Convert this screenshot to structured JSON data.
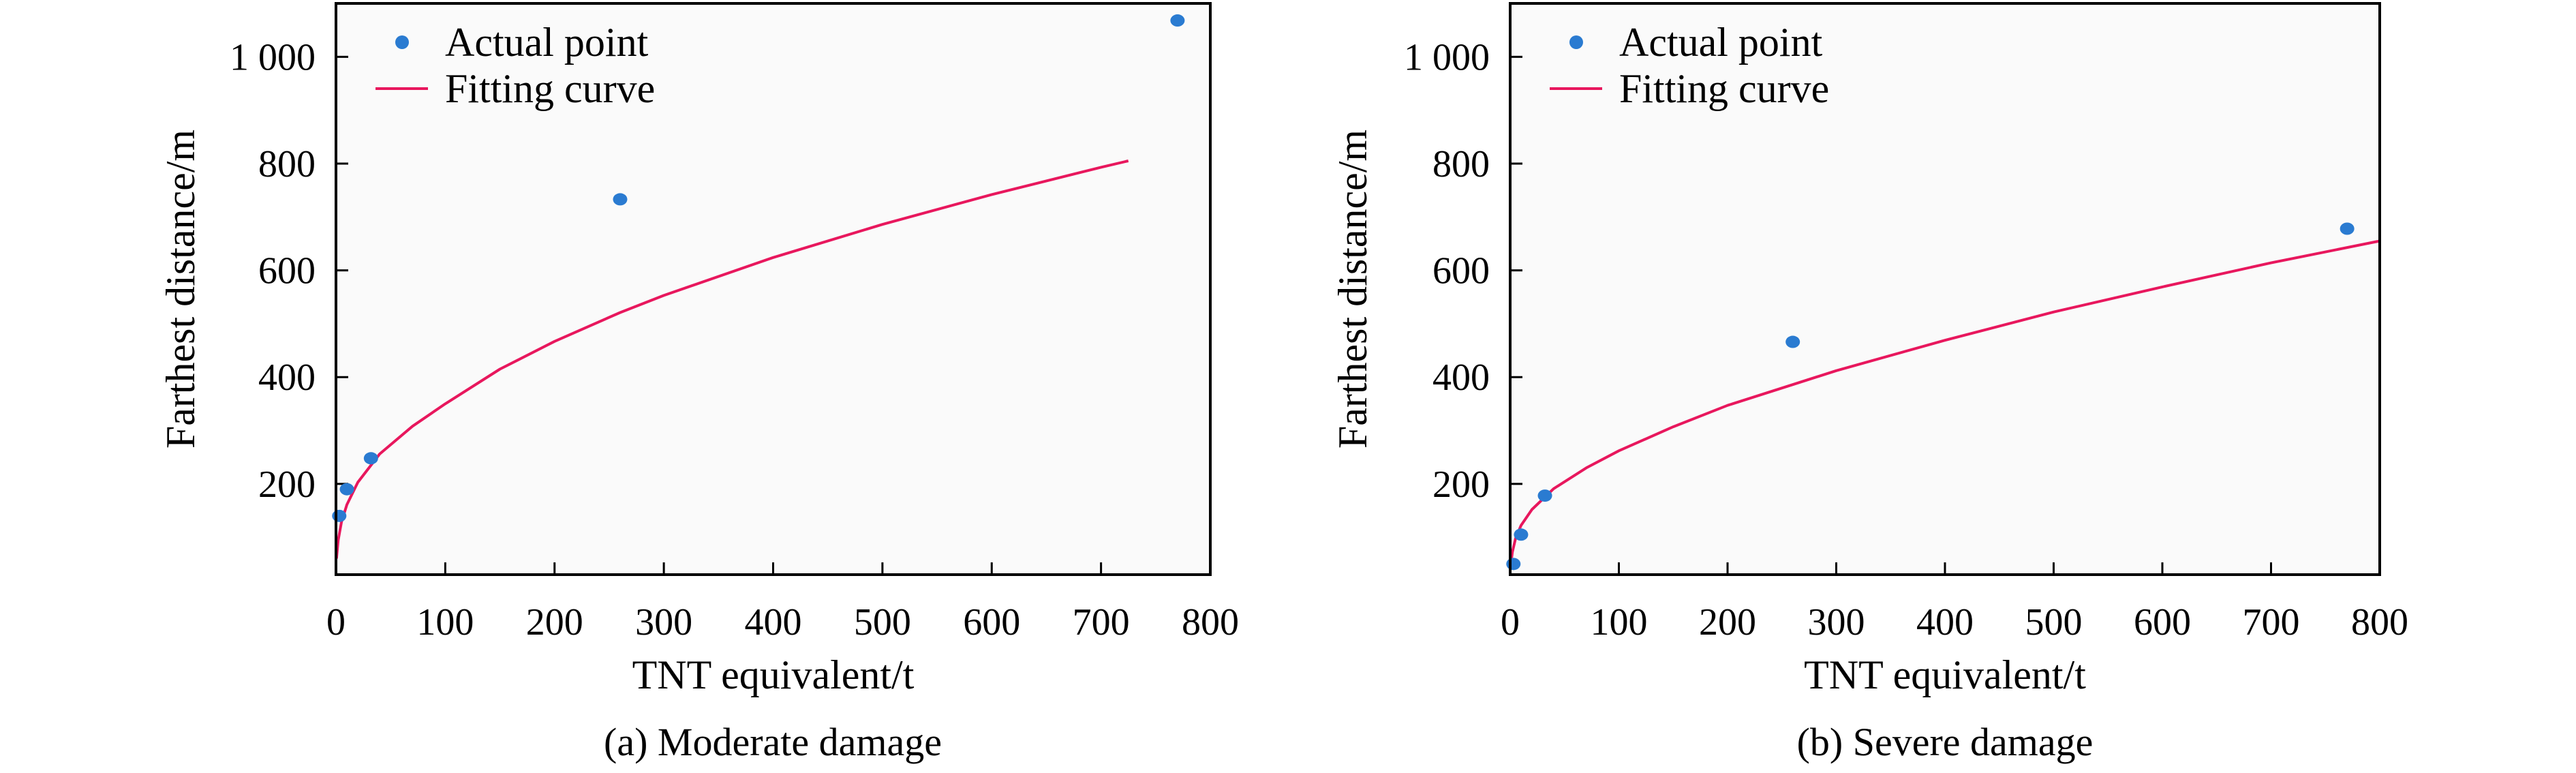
{
  "chart_data": [
    {
      "type": "scatter",
      "caption": "(a) Moderate damage",
      "xlabel": "TNT equivalent/t",
      "ylabel": "Farthest distance/m",
      "xlim": [
        0,
        800
      ],
      "ylim": [
        30,
        1100
      ],
      "x_ticks": [
        0,
        100,
        200,
        300,
        400,
        500,
        600,
        700,
        800
      ],
      "x_tick_labels": [
        "0",
        "100",
        "200",
        "300",
        "400",
        "500",
        "600",
        "700",
        "800"
      ],
      "y_ticks": [
        200,
        400,
        600,
        800,
        1000
      ],
      "y_tick_labels": [
        "200",
        "400",
        "600",
        "800",
        "1 000"
      ],
      "legend_position": "top-left",
      "background": "#fafafa",
      "series": [
        {
          "name": "Actual point",
          "kind": "scatter",
          "color": "#2a7bd1",
          "x": [
            3,
            10,
            32,
            260,
            770
          ],
          "y": [
            140,
            190,
            248,
            733,
            1068
          ]
        },
        {
          "name": "Fitting curve",
          "kind": "line",
          "color": "#e8175d",
          "x": [
            0.5,
            2,
            5,
            10,
            20,
            40,
            70,
            100,
            150,
            200,
            260,
            300,
            400,
            500,
            600,
            700,
            725
          ],
          "y": [
            60,
            94,
            128,
            161,
            203,
            256,
            308,
            350,
            415,
            467,
            521,
            553,
            624,
            686,
            742,
            793,
            805
          ]
        }
      ]
    },
    {
      "type": "scatter",
      "caption": "(b) Severe damage",
      "xlabel": "TNT equivalent/t",
      "ylabel": "Farthest distance/m",
      "xlim": [
        0,
        800
      ],
      "ylim": [
        30,
        1100
      ],
      "x_ticks": [
        0,
        100,
        200,
        300,
        400,
        500,
        600,
        700,
        800
      ],
      "x_tick_labels": [
        "0",
        "100",
        "200",
        "300",
        "400",
        "500",
        "600",
        "700",
        "800"
      ],
      "y_ticks": [
        200,
        400,
        600,
        800,
        1000
      ],
      "y_tick_labels": [
        "200",
        "400",
        "600",
        "800",
        "1 000"
      ],
      "legend_position": "top-left",
      "background": "#fafafa",
      "series": [
        {
          "name": "Actual point",
          "kind": "scatter",
          "color": "#2a7bd1",
          "x": [
            3,
            10,
            32,
            260,
            770
          ],
          "y": [
            50,
            105,
            178,
            466,
            678
          ]
        },
        {
          "name": "Fitting curve",
          "kind": "line",
          "color": "#e8175d",
          "x": [
            0.5,
            2,
            5,
            10,
            20,
            40,
            70,
            100,
            150,
            200,
            260,
            300,
            400,
            500,
            600,
            700,
            800
          ],
          "y": [
            48,
            72,
            98,
            122,
            152,
            191,
            230,
            262,
            307,
            347,
            386,
            412,
            469,
            522,
            569,
            614,
            655
          ]
        }
      ]
    }
  ]
}
